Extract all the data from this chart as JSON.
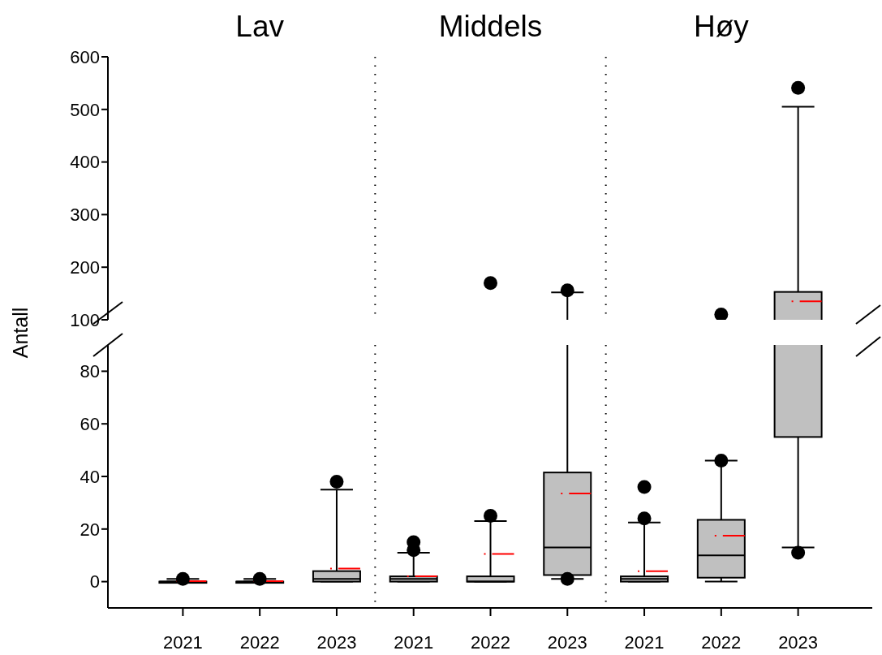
{
  "chart_data": [
    {
      "type": "box",
      "annotations": [
        "Lav",
        "Middels",
        "Høy"
      ],
      "categories": [
        "2021",
        "2022",
        "2023",
        "2021",
        "2022",
        "2023",
        "2021",
        "2022",
        "2023"
      ],
      "color": "#c0c0c0",
      "ylim": [
        100,
        600
      ],
      "yticks": [
        100,
        200,
        300,
        400,
        500,
        600
      ],
      "tick_labels": "y",
      "boxes": [
        {
          "low": 0,
          "q1": 0,
          "median": 0,
          "q3": 0,
          "high": 1,
          "mean": 0.2
        },
        {
          "low": 0,
          "q1": 0,
          "median": 0,
          "q3": 0,
          "high": 1,
          "mean": 0.2
        },
        {
          "low": 0,
          "q1": 0,
          "median": 1,
          "q3": 4,
          "high": 35,
          "mean": 5
        },
        {
          "low": 0,
          "q1": 0,
          "median": 1,
          "q3": 2,
          "high": 11,
          "mean": 2
        },
        {
          "low": 0,
          "q1": 0,
          "median": 0,
          "q3": 2,
          "high": 23,
          "mean": 10.5,
          "outliers": [
            170
          ]
        },
        {
          "low": 1,
          "q1": 2.5,
          "median": 13,
          "q3": 41.5,
          "high": 152,
          "mean": 33.5,
          "outliers": [
            156
          ]
        },
        {
          "low": 0,
          "q1": 0,
          "median": 1,
          "q3": 2,
          "high": 22.5,
          "mean": 4
        },
        {
          "low": 0,
          "q1": 1.5,
          "median": 10,
          "q3": 23.5,
          "high": 46,
          "mean": 17.5,
          "outliers": [
            110
          ]
        },
        {
          "low": 13,
          "q1": 55,
          "q3": 153,
          "high": 505,
          "mean": 135,
          "outliers": [
            541
          ]
        }
      ]
    },
    {
      "type": "box",
      "ylabel": "Antall",
      "categories": [
        "2021",
        "2022",
        "2023",
        "2021",
        "2022",
        "2023",
        "2021",
        "2022",
        "2023"
      ],
      "color": "#c0c0c0",
      "ylim": [
        -10,
        90
      ],
      "yticks": [
        0,
        20,
        40,
        60,
        80
      ],
      "boxes": [
        {
          "low": 0,
          "q1": 0,
          "median": 0,
          "q3": 0,
          "high": 1,
          "mean": 0.2,
          "outliers": [
            1
          ]
        },
        {
          "low": 0,
          "q1": 0,
          "median": 0,
          "q3": 0,
          "high": 1,
          "mean": 0.2,
          "outliers": [
            1
          ]
        },
        {
          "low": 0,
          "q1": 0,
          "median": 1,
          "q3": 4,
          "high": 35,
          "mean": 5,
          "outliers": [
            38
          ]
        },
        {
          "low": 0,
          "q1": 0,
          "median": 1,
          "q3": 2,
          "high": 11,
          "mean": 2,
          "outliers": [
            12,
            15
          ]
        },
        {
          "low": 0,
          "q1": 0,
          "median": 0,
          "q3": 2,
          "high": 23,
          "mean": 10.5,
          "outliers": [
            25
          ]
        },
        {
          "low": 1,
          "q1": 2.5,
          "median": 13,
          "q3": 41.5,
          "high": 152,
          "mean": 33.5,
          "outliers": [
            1
          ]
        },
        {
          "low": 0,
          "q1": 0,
          "median": 1,
          "q3": 2,
          "high": 22.5,
          "mean": 4,
          "outliers": [
            24,
            36
          ]
        },
        {
          "low": 0,
          "q1": 1.5,
          "median": 10,
          "q3": 23.5,
          "high": 46,
          "mean": 17.5,
          "outliers": [
            46
          ]
        },
        {
          "low": 13,
          "q1": 55,
          "q3": 153,
          "high": 505,
          "mean": 135,
          "outliers": [
            11
          ]
        }
      ]
    }
  ]
}
